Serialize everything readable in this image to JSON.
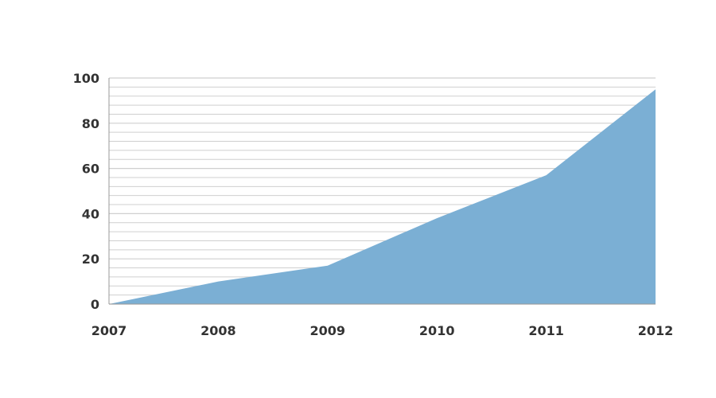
{
  "chart_data": {
    "type": "area",
    "title": "",
    "xlabel": "",
    "ylabel": "",
    "categories": [
      "2007",
      "2008",
      "2009",
      "2010",
      "2011",
      "2012"
    ],
    "series": [
      {
        "values": [
          0,
          10,
          17,
          38,
          57,
          95
        ]
      }
    ],
    "ylim": [
      0,
      100
    ],
    "yticks": [
      0,
      20,
      40,
      60,
      80,
      100
    ],
    "minor_gridlines_per_major": 5,
    "grid": true,
    "legend": "none",
    "colors": {
      "area_fill": "#7bafd4",
      "gridline": "#cfcfcf",
      "axis": "#9a9a9a",
      "tick_text": "#333333"
    }
  }
}
